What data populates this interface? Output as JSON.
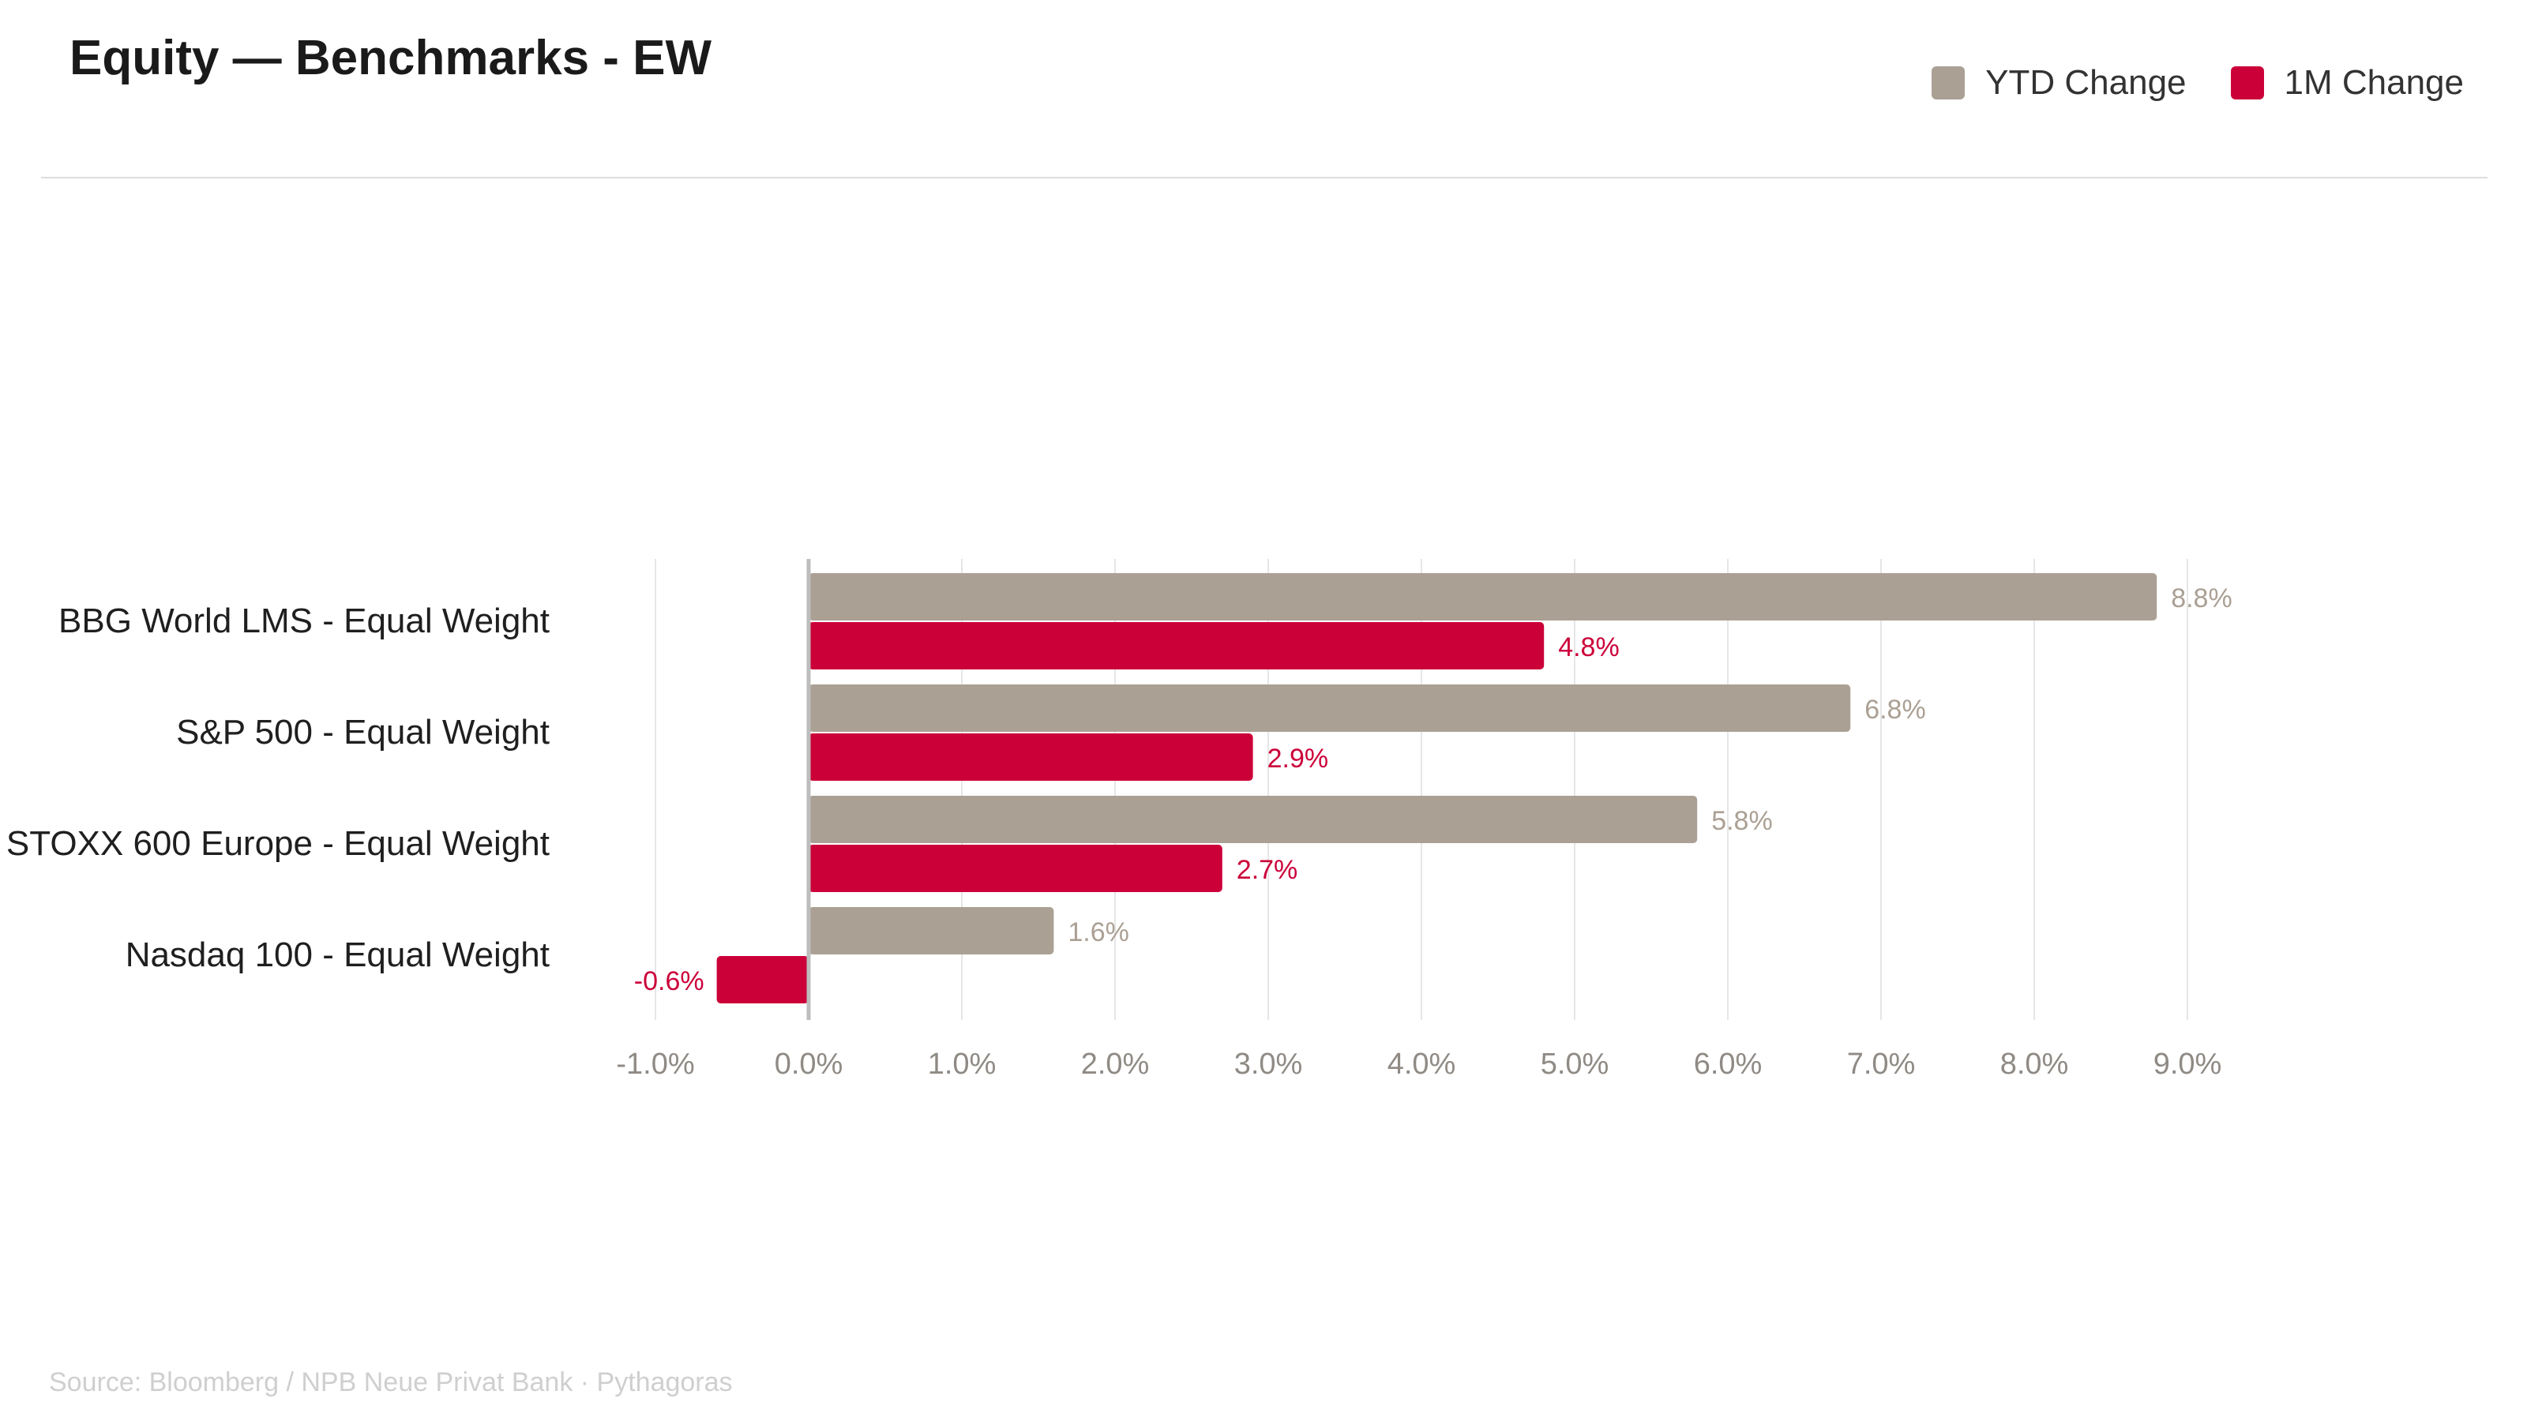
{
  "title": "Equity — Benchmarks - EW",
  "source": "Source: Bloomberg / NPB Neue Privat Bank · Pythagoras",
  "colors": {
    "ytd": "#aba094",
    "m1": "#cc0039"
  },
  "chart_data": {
    "type": "bar",
    "orientation": "horizontal",
    "title": "Equity — Benchmarks - EW",
    "categories": [
      "BBG World LMS - Equal Weight",
      "S&P 500 - Equal Weight",
      "STOXX 600 Europe - Equal Weight",
      "Nasdaq 100 - Equal Weight"
    ],
    "series": [
      {
        "name": "YTD Change",
        "color": "#aba094",
        "values": [
          8.8,
          6.8,
          5.8,
          1.6
        ],
        "labels": [
          "8.8%",
          "6.8%",
          "5.8%",
          "1.6%"
        ]
      },
      {
        "name": "1M Change",
        "color": "#cc0039",
        "values": [
          4.8,
          2.9,
          2.7,
          -0.6
        ],
        "labels": [
          "4.8%",
          "2.9%",
          "2.7%",
          "-0.6%"
        ]
      }
    ],
    "xlim": [
      -1,
      9
    ],
    "xticks": [
      -1,
      0,
      1,
      2,
      3,
      4,
      5,
      6,
      7,
      8,
      9
    ],
    "xtick_labels": [
      "-1.0%",
      "0.0%",
      "1.0%",
      "2.0%",
      "3.0%",
      "4.0%",
      "5.0%",
      "6.0%",
      "7.0%",
      "8.0%",
      "9.0%"
    ],
    "grid": true,
    "legend": "top-right"
  }
}
